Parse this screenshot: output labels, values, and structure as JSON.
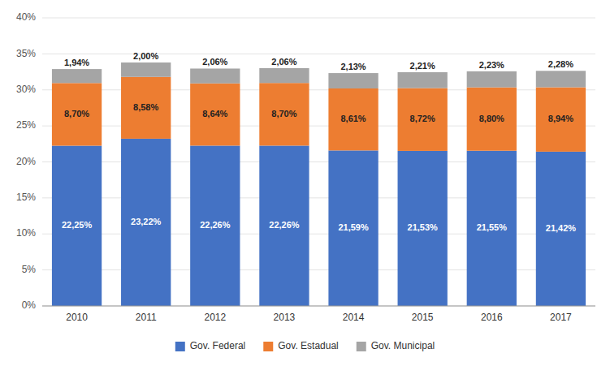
{
  "chart_data": {
    "type": "bar",
    "stacked": true,
    "categories": [
      "2010",
      "2011",
      "2012",
      "2013",
      "2014",
      "2015",
      "2016",
      "2017"
    ],
    "series": [
      {
        "name": "Gov. Federal",
        "color": "#4472C4",
        "values": [
          22.25,
          23.22,
          22.26,
          22.26,
          21.59,
          21.53,
          21.55,
          21.42
        ],
        "value_labels": [
          "22,25%",
          "23,22%",
          "22,26%",
          "22,26%",
          "21,59%",
          "21,53%",
          "21,55%",
          "21,42%"
        ]
      },
      {
        "name": "Gov. Estadual",
        "color": "#ED7D31",
        "values": [
          8.7,
          8.58,
          8.64,
          8.7,
          8.61,
          8.72,
          8.8,
          8.94
        ],
        "value_labels": [
          "8,70%",
          "8,58%",
          "8,64%",
          "8,70%",
          "8,61%",
          "8,72%",
          "8,80%",
          "8,94%"
        ]
      },
      {
        "name": "Gov. Municipal",
        "color": "#A5A5A5",
        "values": [
          1.94,
          2.0,
          2.06,
          2.06,
          2.13,
          2.21,
          2.23,
          2.28
        ],
        "value_labels": [
          "1,94%",
          "2,00%",
          "2,06%",
          "2,06%",
          "2,13%",
          "2,21%",
          "2,23%",
          "2,28%"
        ]
      }
    ],
    "ylim": [
      0,
      40
    ],
    "yticks": [
      {
        "value": 0,
        "label": "0%"
      },
      {
        "value": 5,
        "label": "5%"
      },
      {
        "value": 10,
        "label": "10%"
      },
      {
        "value": 15,
        "label": "15%"
      },
      {
        "value": 20,
        "label": "20%"
      },
      {
        "value": 25,
        "label": "25%"
      },
      {
        "value": 30,
        "label": "30%"
      },
      {
        "value": 35,
        "label": "35%"
      },
      {
        "value": 40,
        "label": "40%"
      }
    ],
    "grid": true,
    "data_labels": true,
    "legend": "bottom"
  }
}
